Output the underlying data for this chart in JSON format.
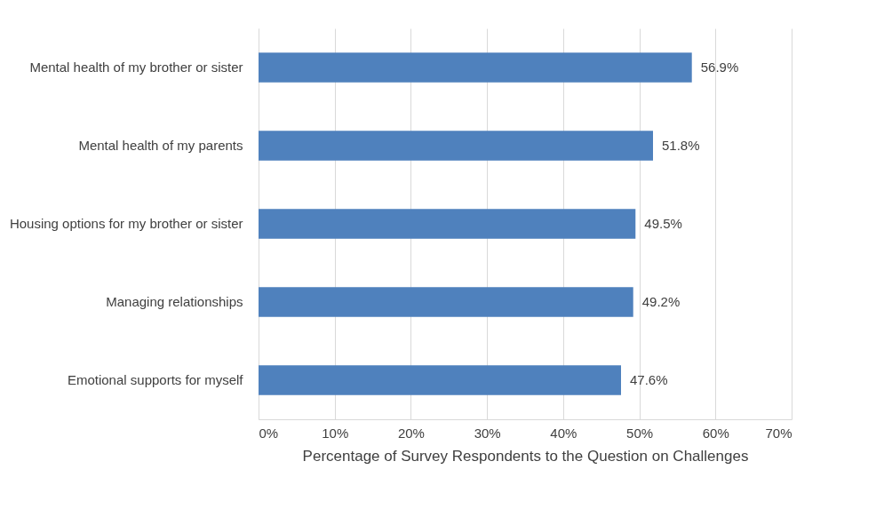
{
  "chart_data": {
    "type": "bar",
    "orientation": "horizontal",
    "xlabel": "Percentage of Survey Respondents to the Question on Challenges",
    "categories": [
      "Mental health of my brother or sister",
      "Mental health of my parents",
      "Housing options for my brother or sister",
      "Managing relationships",
      "Emotional supports for myself"
    ],
    "values": [
      56.9,
      51.8,
      49.5,
      49.2,
      47.6
    ],
    "value_labels": [
      "56.9%",
      "51.8%",
      "49.5%",
      "49.2%",
      "47.6%"
    ],
    "color": "#4f81bd",
    "xlim": [
      0,
      70
    ],
    "xticks": [
      {
        "value": 0,
        "label": "0%"
      },
      {
        "value": 10,
        "label": "10%"
      },
      {
        "value": 20,
        "label": "20%"
      },
      {
        "value": 30,
        "label": "30%"
      },
      {
        "value": 40,
        "label": "40%"
      },
      {
        "value": 50,
        "label": "50%"
      },
      {
        "value": 60,
        "label": "60%"
      },
      {
        "value": 70,
        "label": "70%"
      }
    ],
    "grid": "x"
  }
}
